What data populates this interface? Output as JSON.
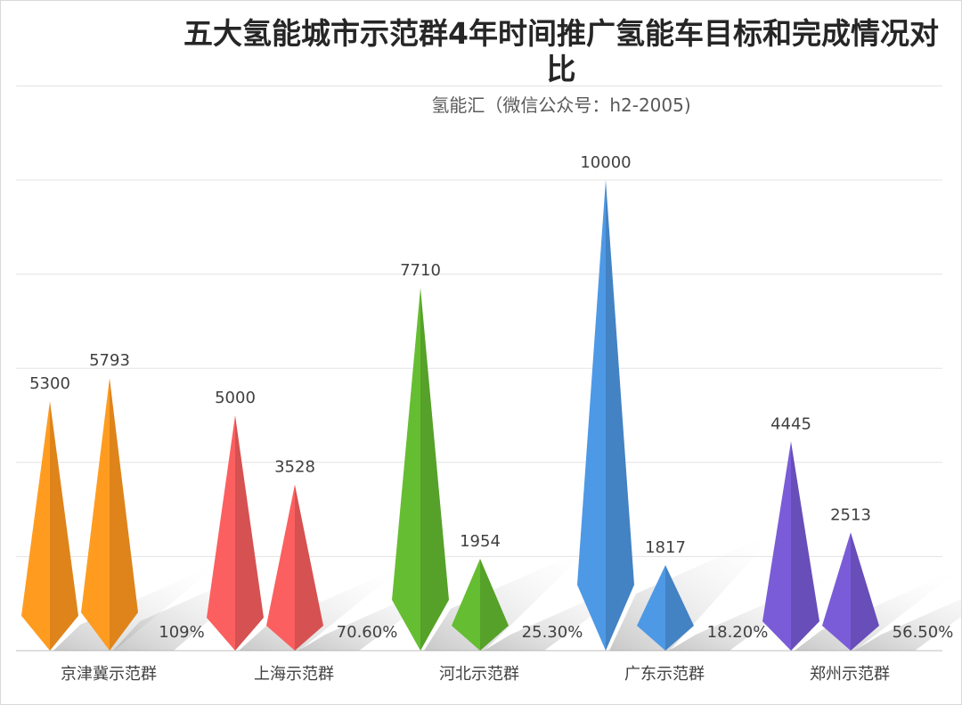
{
  "title": "五大氢能城市示范群4年时间推广氢能车目标和完成情况对比",
  "subtitle": "氢能汇（微信公众号：h2-2005)",
  "chart_data": {
    "type": "bar",
    "bar_shape": "double-cone",
    "categories": [
      "京津冀示范群",
      "上海示范群",
      "河北示范群",
      "广东示范群",
      "郑州示范群"
    ],
    "series": [
      {
        "values": [
          5300,
          5000,
          7710,
          10000,
          4445
        ]
      },
      {
        "values": [
          5793,
          3528,
          1954,
          1817,
          2513
        ]
      }
    ],
    "completion_labels": [
      "109%",
      "70.60%",
      "25.30%",
      "18.20%",
      "56.50%"
    ],
    "colors": [
      "#F7931E",
      "#EE5A5A",
      "#5FB32E",
      "#4A90D9",
      "#7357CC"
    ],
    "ylim": [
      0,
      10000
    ],
    "grid": true,
    "legend": "none",
    "xlabel": "",
    "ylabel": ""
  }
}
